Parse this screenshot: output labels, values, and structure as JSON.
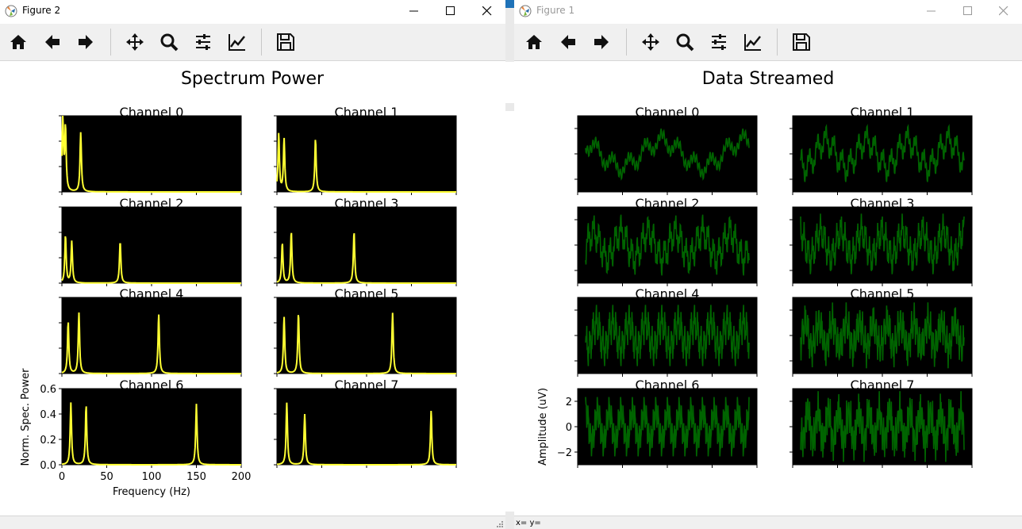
{
  "left_window": {
    "title": "Figure 2",
    "figure_title": "Spectrum Power",
    "coordinates": ""
  },
  "right_window": {
    "title": "Figure 1",
    "figure_title": "Data Streamed",
    "coordinates": "x= y="
  },
  "toolbar_icons": [
    "home-icon",
    "back-arrow-icon",
    "forward-arrow-icon",
    "pan-icon",
    "zoom-icon",
    "configure-subplots-icon",
    "edit-axis-icon",
    "save-icon"
  ],
  "chart_data": [
    {
      "type": "line",
      "title": "Spectrum Power",
      "xlabel": "Frequency (Hz)",
      "ylabel": "Norm. Spec. Power",
      "xlim": [
        0,
        200
      ],
      "ylim": [
        0,
        0.6
      ],
      "xticks": [
        "0",
        "50",
        "100",
        "150",
        "200"
      ],
      "yticks": [
        "0.0",
        "0.2",
        "0.4",
        "0.6"
      ],
      "line_color": "#ffff33",
      "background": "#000000",
      "subplots": [
        {
          "title": "Channel 0",
          "peaks": [
            [
              1,
              0.58
            ],
            [
              4,
              0.5
            ],
            [
              21,
              0.47
            ]
          ]
        },
        {
          "title": "Channel 1",
          "peaks": [
            [
              2,
              0.46
            ],
            [
              8,
              0.42
            ],
            [
              43,
              0.42
            ]
          ]
        },
        {
          "title": "Channel 2",
          "peaks": [
            [
              4,
              0.38
            ],
            [
              11,
              0.33
            ],
            [
              65,
              0.33
            ]
          ]
        },
        {
          "title": "Channel 3",
          "peaks": [
            [
              6,
              0.32
            ],
            [
              16,
              0.41
            ],
            [
              86,
              0.41
            ]
          ]
        },
        {
          "title": "Channel 4",
          "peaks": [
            [
              7,
              0.41
            ],
            [
              19,
              0.48
            ],
            [
              108,
              0.47
            ]
          ]
        },
        {
          "title": "Channel 5",
          "peaks": [
            [
              8,
              0.45
            ],
            [
              24,
              0.48
            ],
            [
              129,
              0.48
            ]
          ]
        },
        {
          "title": "Channel 6",
          "peaks": [
            [
              10,
              0.49
            ],
            [
              27,
              0.47
            ],
            [
              150,
              0.48
            ]
          ]
        },
        {
          "title": "Channel 7",
          "peaks": [
            [
              11,
              0.49
            ],
            [
              31,
              0.4
            ],
            [
              172,
              0.43
            ]
          ]
        }
      ]
    },
    {
      "type": "line",
      "title": "Data Streamed",
      "xlabel": "",
      "ylabel": "Amplitude (uV)",
      "ylim": [
        -3,
        3
      ],
      "yticks": [
        "2",
        "0",
        "−2"
      ],
      "line_color": "#006400",
      "background": "#000000",
      "subplots": [
        {
          "title": "Channel 0",
          "components": [
            [
              2,
              1.0
            ],
            [
              10,
              0.6
            ],
            [
              60,
              0.4
            ]
          ]
        },
        {
          "title": "Channel 1",
          "components": [
            [
              4,
              1.0
            ],
            [
              20,
              0.8
            ],
            [
              80,
              0.5
            ]
          ]
        },
        {
          "title": "Channel 2",
          "components": [
            [
              6,
              1.0
            ],
            [
              30,
              0.9
            ],
            [
              110,
              0.6
            ]
          ]
        },
        {
          "title": "Channel 3",
          "components": [
            [
              8,
              1.0
            ],
            [
              40,
              0.9
            ],
            [
              140,
              0.6
            ]
          ]
        },
        {
          "title": "Channel 4",
          "components": [
            [
              10,
              1.0
            ],
            [
              50,
              1.0
            ],
            [
              170,
              0.7
            ]
          ]
        },
        {
          "title": "Channel 5",
          "components": [
            [
              12,
              1.0
            ],
            [
              60,
              1.0
            ],
            [
              190,
              0.7
            ]
          ]
        },
        {
          "title": "Channel 6",
          "components": [
            [
              14,
              1.2
            ],
            [
              70,
              1.0
            ],
            [
              210,
              0.8
            ]
          ]
        },
        {
          "title": "Channel 7",
          "components": [
            [
              16,
              1.2
            ],
            [
              80,
              1.0
            ],
            [
              230,
              0.8
            ]
          ]
        }
      ]
    }
  ]
}
